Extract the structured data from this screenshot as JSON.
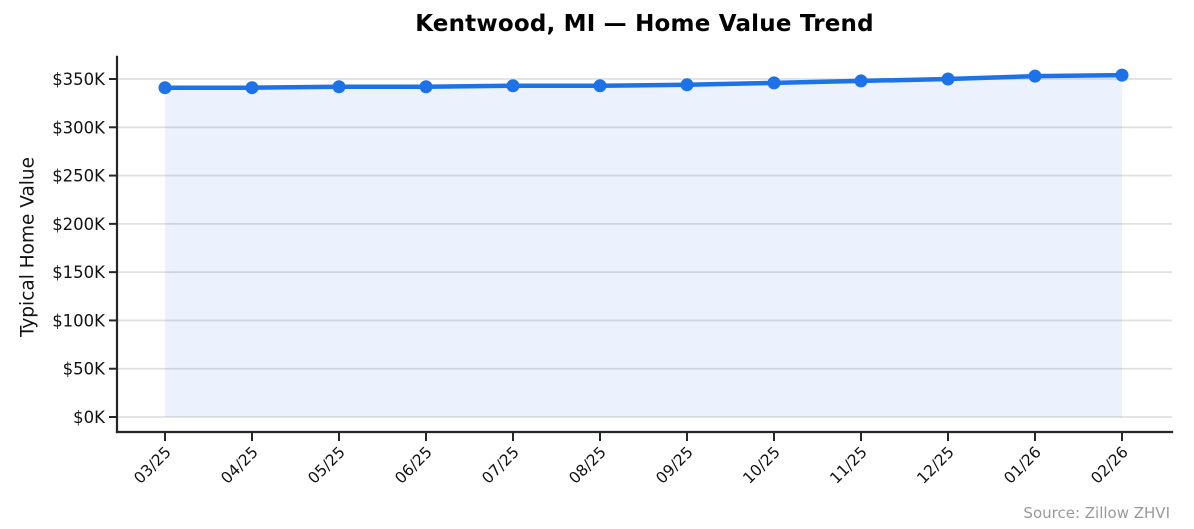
{
  "chart_data": {
    "type": "line",
    "title": "Kentwood, MI — Home Value Trend",
    "ylabel": "Typical Home Value",
    "xlabel": "",
    "source_note": "Source: Zillow ZHVI",
    "categories": [
      "03/25",
      "04/25",
      "05/25",
      "06/25",
      "07/25",
      "08/25",
      "09/25",
      "10/25",
      "11/25",
      "12/25",
      "01/26",
      "02/26"
    ],
    "values": [
      341000,
      341000,
      342000,
      342000,
      343000,
      343000,
      344000,
      346000,
      348000,
      350000,
      353000,
      354000
    ],
    "yticks": [
      0,
      50000,
      100000,
      150000,
      200000,
      250000,
      300000,
      350000
    ],
    "ytick_labels": [
      "$0K",
      "$50K",
      "$100K",
      "$150K",
      "$200K",
      "$250K",
      "$300K",
      "$350K"
    ],
    "ylim": [
      0,
      373000
    ],
    "grid": "horizontal",
    "legend": "none",
    "marker": "circle",
    "colors": {
      "line": "#1d72e8",
      "fill": "#1d72e8",
      "fill_opacity": 0.09,
      "grid": "#e0e0e0",
      "spine": "#262626",
      "tick_label": "#111111",
      "title": "#000000",
      "source": "#999999"
    }
  }
}
